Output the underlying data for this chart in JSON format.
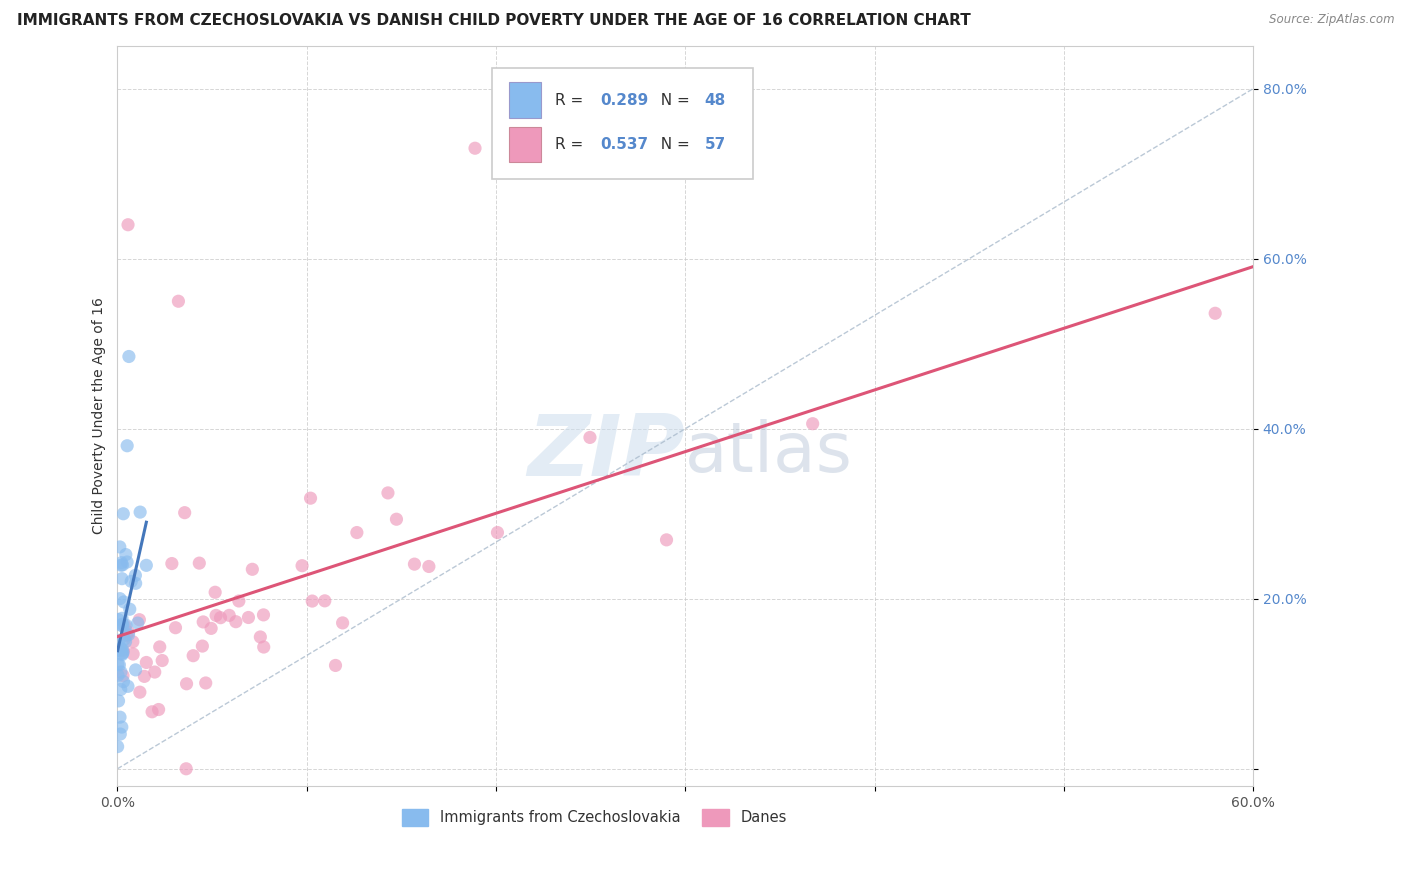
{
  "title": "IMMIGRANTS FROM CZECHOSLOVAKIA VS DANISH CHILD POVERTY UNDER THE AGE OF 16 CORRELATION CHART",
  "source": "Source: ZipAtlas.com",
  "ylabel": "Child Poverty Under the Age of 16",
  "xlim": [
    0.0,
    0.6
  ],
  "ylim": [
    -0.02,
    0.85
  ],
  "x_ticks": [
    0.0,
    0.1,
    0.2,
    0.3,
    0.4,
    0.5,
    0.6
  ],
  "x_tick_labels": [
    "0.0%",
    "",
    "",
    "",
    "",
    "",
    "60.0%"
  ],
  "y_ticks": [
    0.0,
    0.2,
    0.4,
    0.6,
    0.8
  ],
  "y_tick_labels": [
    "",
    "20.0%",
    "40.0%",
    "60.0%",
    "80.0%"
  ],
  "legend_entries": [
    {
      "label": "Immigrants from Czechoslovakia",
      "color": "#a8c8f0",
      "R": "0.289",
      "N": "48"
    },
    {
      "label": "Danes",
      "color": "#f0a8c0",
      "R": "0.537",
      "N": "57"
    }
  ],
  "line_blue_color": "#4477bb",
  "line_pink_color": "#dd5577",
  "line_dashed_color": "#aabbcc",
  "scatter_blue_color": "#88bbee",
  "scatter_pink_color": "#ee99bb",
  "background_color": "#ffffff",
  "grid_color": "#cccccc",
  "watermark_color": "#ccdded",
  "title_fontsize": 11,
  "axis_label_fontsize": 10,
  "tick_fontsize": 10,
  "legend_R_N_color": "#5588cc",
  "legend_label_color": "#333333"
}
